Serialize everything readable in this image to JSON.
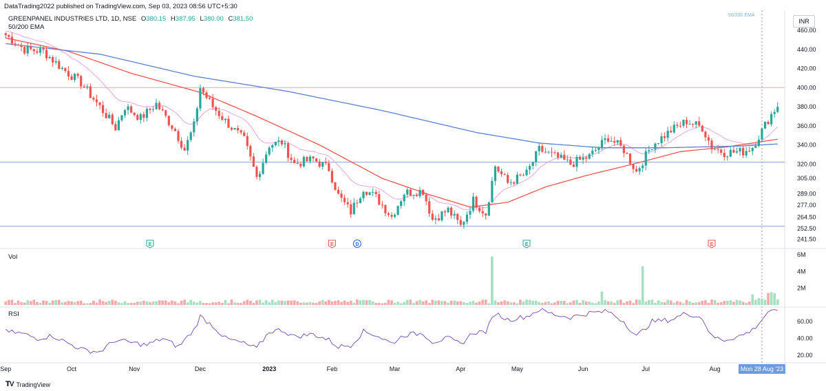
{
  "header": {
    "publisher_line": "DataTrading2022 published on TradingView.com, Sep 03, 2023 08:56 UTC+5:30"
  },
  "symbol": {
    "name": "GREENPANEL INDUSTRIES LTD, 1D, NSE",
    "o_label": "O",
    "o": "380.15",
    "h_label": "H",
    "h": "387.95",
    "l_label": "L",
    "l": "380.00",
    "c_label": "C",
    "c": "381.50",
    "ema_label": "50/200 EMA",
    "ema_corner": "50/200 EMA",
    "currency": "INR"
  },
  "panes": {
    "volume_label": "Vol",
    "rsi_label": "RSI"
  },
  "footer": {
    "brand": "TradingView"
  },
  "colors": {
    "up": "#26a69a",
    "down": "#ef5350",
    "ema50": "#ef5350",
    "ema200": "#5b7fd6",
    "ema_short": "#e7a6e7",
    "rsi": "#7e57c2",
    "hline_red": "#f4a0a0",
    "hline_blue": "#8fa8d8"
  },
  "chart_data": {
    "type": "candlestick",
    "y_ticks": [
      "460.00",
      "440.00",
      "420.00",
      "400.00",
      "380.00",
      "360.00",
      "340.00",
      "320.00",
      "305.00",
      "289.00",
      "277.00",
      "264.50",
      "252.50",
      "241.50"
    ],
    "y_tick_values": [
      460,
      440,
      420,
      400,
      380,
      360,
      340,
      320,
      305,
      289,
      277,
      264.5,
      252.5,
      241.5
    ],
    "x_labels": [
      {
        "label": "Sep",
        "day": 0
      },
      {
        "label": "Oct",
        "day": 21
      },
      {
        "label": "Nov",
        "day": 41
      },
      {
        "label": "Dec",
        "day": 62
      },
      {
        "label": "2023",
        "day": 84
      },
      {
        "label": "Feb",
        "day": 104
      },
      {
        "label": "Mar",
        "day": 124
      },
      {
        "label": "Apr",
        "day": 145
      },
      {
        "label": "May",
        "day": 163
      },
      {
        "label": "Jun",
        "day": 184
      },
      {
        "label": "Jul",
        "day": 204
      },
      {
        "label": "Aug",
        "day": 226
      }
    ],
    "crosshair_label": "Mon 28 Aug '23",
    "horizontal_levels": [
      {
        "value": 400,
        "color": "red"
      },
      {
        "value": 322,
        "color": "blue"
      },
      {
        "value": 255,
        "color": "blue"
      }
    ],
    "events": [
      {
        "label": "E",
        "day": 46,
        "kind": "earnings-up"
      },
      {
        "label": "E",
        "day": 104,
        "kind": "earnings-down"
      },
      {
        "label": "D",
        "day": 112,
        "kind": "dividend"
      },
      {
        "label": "E",
        "day": 166,
        "kind": "earnings-up"
      },
      {
        "label": "E",
        "day": 225,
        "kind": "earnings-down"
      }
    ],
    "close_anchors": [
      [
        0,
        455
      ],
      [
        6,
        440
      ],
      [
        12,
        438
      ],
      [
        18,
        420
      ],
      [
        24,
        405
      ],
      [
        30,
        380
      ],
      [
        35,
        358
      ],
      [
        38,
        380
      ],
      [
        43,
        368
      ],
      [
        48,
        383
      ],
      [
        54,
        355
      ],
      [
        57,
        335
      ],
      [
        60,
        360
      ],
      [
        62,
        400
      ],
      [
        66,
        380
      ],
      [
        70,
        365
      ],
      [
        76,
        345
      ],
      [
        80,
        306
      ],
      [
        84,
        340
      ],
      [
        88,
        343
      ],
      [
        92,
        320
      ],
      [
        98,
        325
      ],
      [
        103,
        315
      ],
      [
        106,
        287
      ],
      [
        110,
        270
      ],
      [
        114,
        295
      ],
      [
        118,
        285
      ],
      [
        123,
        265
      ],
      [
        127,
        290
      ],
      [
        133,
        292
      ],
      [
        136,
        262
      ],
      [
        141,
        272
      ],
      [
        145,
        255
      ],
      [
        149,
        282
      ],
      [
        153,
        268
      ],
      [
        156,
        318
      ],
      [
        160,
        300
      ],
      [
        166,
        310
      ],
      [
        170,
        335
      ],
      [
        175,
        328
      ],
      [
        180,
        320
      ],
      [
        186,
        328
      ],
      [
        192,
        348
      ],
      [
        197,
        335
      ],
      [
        201,
        312
      ],
      [
        206,
        340
      ],
      [
        212,
        355
      ],
      [
        217,
        365
      ],
      [
        222,
        358
      ],
      [
        225,
        338
      ],
      [
        229,
        332
      ],
      [
        235,
        333
      ],
      [
        238,
        338
      ],
      [
        241,
        355
      ],
      [
        244,
        372
      ],
      [
        246,
        381.5
      ]
    ],
    "ema50_anchors": [
      [
        0,
        452
      ],
      [
        20,
        438
      ],
      [
        40,
        415
      ],
      [
        62,
        395
      ],
      [
        80,
        370
      ],
      [
        100,
        340
      ],
      [
        120,
        305
      ],
      [
        135,
        288
      ],
      [
        148,
        275
      ],
      [
        160,
        280
      ],
      [
        172,
        296
      ],
      [
        185,
        308
      ],
      [
        200,
        320
      ],
      [
        215,
        333
      ],
      [
        230,
        338
      ],
      [
        246,
        346
      ]
    ],
    "ema200_anchors": [
      [
        0,
        446
      ],
      [
        30,
        435
      ],
      [
        60,
        412
      ],
      [
        90,
        396
      ],
      [
        120,
        376
      ],
      [
        150,
        353
      ],
      [
        170,
        342
      ],
      [
        190,
        337
      ],
      [
        210,
        337
      ],
      [
        235,
        339
      ],
      [
        246,
        341
      ]
    ],
    "volume_ticks": [
      "6M",
      "4M",
      "2M"
    ],
    "volume_tick_values": [
      6,
      4,
      2
    ],
    "volume_spikes": [
      {
        "day": 155,
        "value": 5.8
      },
      {
        "day": 203,
        "value": 4.6
      },
      {
        "day": 190,
        "value": 1.6
      },
      {
        "day": 243,
        "value": 1.9
      }
    ],
    "rsi_ticks": [
      "60.00",
      "40.00",
      "20.00"
    ],
    "rsi_tick_values": [
      60,
      40,
      20
    ],
    "rsi_anchors": [
      [
        0,
        48
      ],
      [
        5,
        46
      ],
      [
        10,
        40
      ],
      [
        15,
        43
      ],
      [
        20,
        34
      ],
      [
        25,
        26
      ],
      [
        30,
        24
      ],
      [
        35,
        38
      ],
      [
        40,
        35
      ],
      [
        45,
        32
      ],
      [
        50,
        40
      ],
      [
        55,
        30
      ],
      [
        60,
        50
      ],
      [
        62,
        66
      ],
      [
        66,
        55
      ],
      [
        70,
        40
      ],
      [
        75,
        35
      ],
      [
        80,
        28
      ],
      [
        84,
        48
      ],
      [
        88,
        50
      ],
      [
        92,
        42
      ],
      [
        98,
        45
      ],
      [
        103,
        38
      ],
      [
        106,
        30
      ],
      [
        110,
        32
      ],
      [
        114,
        48
      ],
      [
        118,
        44
      ],
      [
        123,
        34
      ],
      [
        127,
        44
      ],
      [
        133,
        46
      ],
      [
        136,
        36
      ],
      [
        141,
        40
      ],
      [
        145,
        33
      ],
      [
        149,
        47
      ],
      [
        153,
        48
      ],
      [
        156,
        70
      ],
      [
        160,
        62
      ],
      [
        166,
        66
      ],
      [
        170,
        74
      ],
      [
        175,
        68
      ],
      [
        180,
        65
      ],
      [
        186,
        70
      ],
      [
        192,
        72
      ],
      [
        197,
        60
      ],
      [
        201,
        42
      ],
      [
        206,
        60
      ],
      [
        212,
        62
      ],
      [
        217,
        70
      ],
      [
        222,
        64
      ],
      [
        225,
        42
      ],
      [
        229,
        38
      ],
      [
        235,
        44
      ],
      [
        238,
        50
      ],
      [
        241,
        62
      ],
      [
        243,
        72
      ],
      [
        246,
        71
      ]
    ]
  }
}
